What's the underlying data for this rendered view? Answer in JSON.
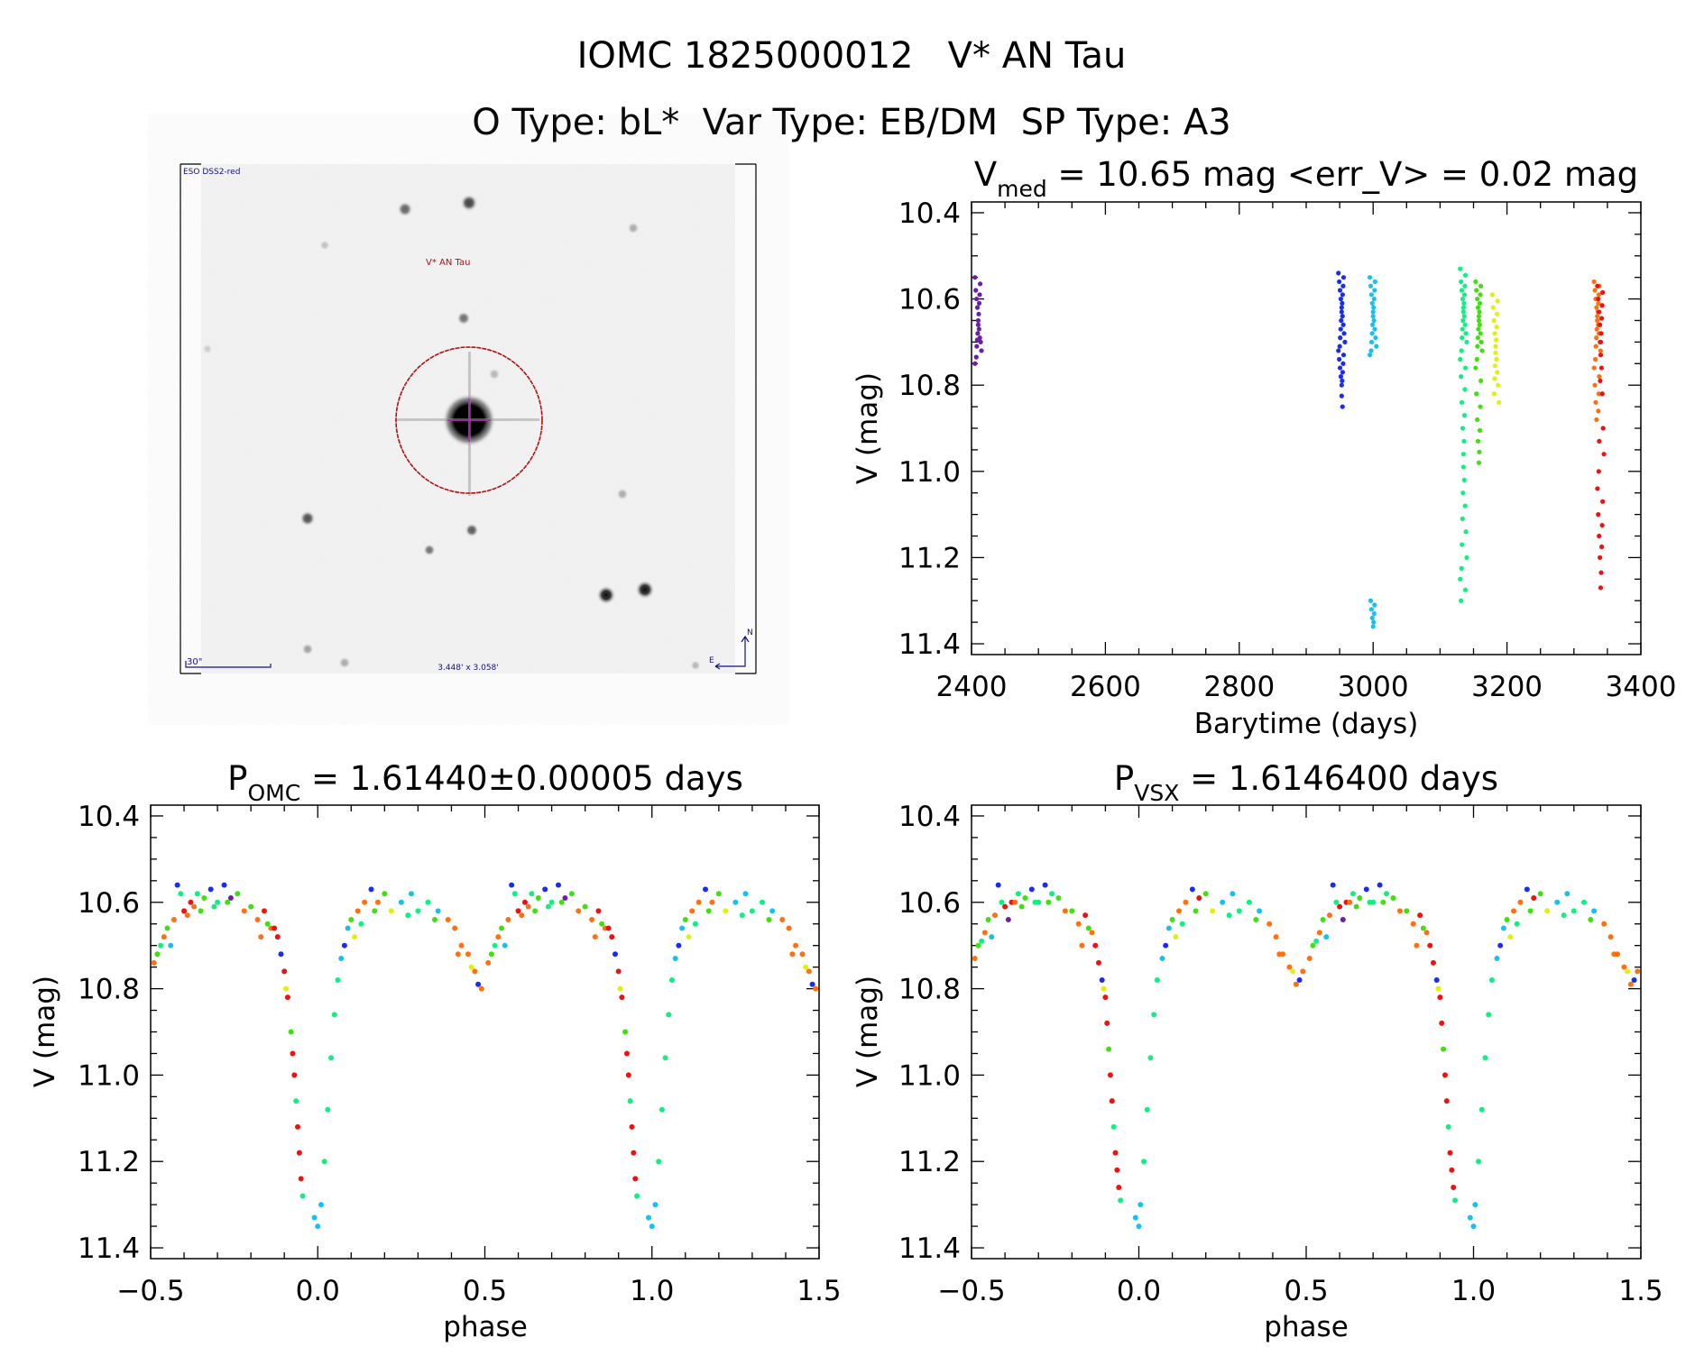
{
  "header": {
    "line1": "IOMC 1825000012   V* AN Tau",
    "line2": "O Type: bL*  Var Type: EB/DM  SP Type: A3"
  },
  "finder": {
    "survey_label": "ESO DSS2-red",
    "target_label": "V* AN Tau",
    "scale_label": "30\"",
    "fov_label": "3.448' x 3.058'",
    "north_label": "N",
    "east_label": "E",
    "circle_color": "#b01010",
    "label_color": "#10108c"
  },
  "colors": {
    "purple": "#6b1fa6",
    "blue": "#1a2cf0",
    "cyan": "#18c0f0",
    "aqua": "#10f080",
    "green": "#40e010",
    "yellow": "#e0f010",
    "orange": "#ff7010",
    "red": "#f01010"
  },
  "chart_data": [
    {
      "type": "scatter",
      "title_main": "V",
      "title_sub": "med",
      "title_rest": " = 10.65 mag <err_V> = 0.02 mag",
      "xlabel": "Barytime (days)",
      "ylabel": "V (mag)",
      "xlim": [
        2400,
        3400
      ],
      "ylim": [
        10.375,
        11.425
      ],
      "y_inverted": true,
      "xticks": [
        "2400",
        "2600",
        "2800",
        "3000",
        "3200",
        "3400"
      ],
      "yticks": [
        "10.4",
        "10.6",
        "10.8",
        "11.0",
        "11.2",
        "11.4"
      ],
      "series": [
        {
          "color": "purple",
          "x": 2410,
          "mags": [
            10.55,
            10.58,
            10.6,
            10.62,
            10.65,
            10.67,
            10.69,
            10.7,
            10.72,
            10.75
          ]
        },
        {
          "color": "blue",
          "x": 2953,
          "mags": [
            10.54,
            10.56,
            10.58,
            10.6,
            10.62,
            10.64,
            10.66,
            10.68,
            10.7,
            10.72,
            10.74,
            10.76,
            10.78,
            10.8,
            10.85
          ]
        },
        {
          "color": "cyan",
          "x": 3000,
          "mags": [
            10.55,
            10.57,
            10.59,
            10.61,
            10.63,
            10.65,
            10.67,
            10.69,
            10.71,
            10.73,
            11.3,
            11.32,
            11.34,
            11.36
          ]
        },
        {
          "color": "aqua",
          "x": 3135,
          "mags": [
            10.53,
            10.56,
            10.58,
            10.6,
            10.62,
            10.64,
            10.66,
            10.68,
            10.7,
            10.74,
            10.78,
            10.84,
            10.9,
            10.96,
            11.02,
            11.08,
            11.14,
            11.2,
            11.25,
            11.3
          ]
        },
        {
          "color": "green",
          "x": 3158,
          "mags": [
            10.56,
            10.58,
            10.6,
            10.62,
            10.64,
            10.66,
            10.68,
            10.7,
            10.72,
            10.76,
            10.82,
            10.88,
            10.93,
            10.98
          ]
        },
        {
          "color": "yellow",
          "x": 3183,
          "mags": [
            10.59,
            10.62,
            10.65,
            10.68,
            10.71,
            10.74,
            10.77,
            10.8,
            10.84
          ]
        },
        {
          "color": "orange",
          "x": 3335,
          "mags": [
            10.56,
            10.58,
            10.6,
            10.62,
            10.64,
            10.66,
            10.68,
            10.7,
            10.72,
            10.76,
            10.8,
            10.84,
            10.88
          ]
        },
        {
          "color": "red",
          "x": 3340,
          "mags": [
            10.57,
            10.6,
            10.63,
            10.66,
            10.7,
            10.76,
            10.82,
            10.9,
            10.96,
            11.04,
            11.1,
            11.15,
            11.2,
            11.27
          ]
        }
      ]
    },
    {
      "type": "scatter",
      "title_main": "P",
      "title_sub": "OMC",
      "title_rest": " = 1.61440±0.00005 days",
      "xlabel": "phase",
      "ylabel": "V (mag)",
      "xlim": [
        -0.5,
        1.5
      ],
      "ylim": [
        10.375,
        11.425
      ],
      "y_inverted": true,
      "xticks": [
        "−0.5",
        "0.0",
        "0.5",
        "1.0",
        "1.5"
      ],
      "yticks": [
        "10.4",
        "10.6",
        "10.8",
        "11.0",
        "11.2",
        "11.4"
      ],
      "points": [
        [
          -0.49,
          10.74,
          "orange"
        ],
        [
          -0.48,
          10.72,
          "green"
        ],
        [
          -0.47,
          10.7,
          "aqua"
        ],
        [
          -0.46,
          10.68,
          "orange"
        ],
        [
          -0.45,
          10.66,
          "green"
        ],
        [
          -0.44,
          10.7,
          "cyan"
        ],
        [
          -0.43,
          10.64,
          "orange"
        ],
        [
          -0.42,
          10.56,
          "blue"
        ],
        [
          -0.41,
          10.58,
          "aqua"
        ],
        [
          -0.4,
          10.62,
          "red"
        ],
        [
          -0.39,
          10.63,
          "orange"
        ],
        [
          -0.38,
          10.6,
          "red"
        ],
        [
          -0.37,
          10.61,
          "orange"
        ],
        [
          -0.36,
          10.58,
          "aqua"
        ],
        [
          -0.35,
          10.62,
          "green"
        ],
        [
          -0.34,
          10.59,
          "green"
        ],
        [
          -0.32,
          10.57,
          "blue"
        ],
        [
          -0.31,
          10.61,
          "aqua"
        ],
        [
          -0.3,
          10.6,
          "aqua"
        ],
        [
          -0.28,
          10.56,
          "blue"
        ],
        [
          -0.27,
          10.6,
          "green"
        ],
        [
          -0.26,
          10.59,
          "purple"
        ],
        [
          -0.24,
          10.58,
          "green"
        ],
        [
          -0.22,
          10.62,
          "orange"
        ],
        [
          -0.2,
          10.61,
          "green"
        ],
        [
          -0.18,
          10.64,
          "orange"
        ],
        [
          -0.17,
          10.68,
          "orange"
        ],
        [
          -0.16,
          10.62,
          "red"
        ],
        [
          -0.15,
          10.65,
          "green"
        ],
        [
          -0.14,
          10.66,
          "orange"
        ],
        [
          -0.13,
          10.66,
          "red"
        ],
        [
          -0.12,
          10.68,
          "red"
        ],
        [
          -0.11,
          10.72,
          "blue"
        ],
        [
          -0.1,
          10.76,
          "red"
        ],
        [
          -0.095,
          10.8,
          "yellow"
        ],
        [
          -0.09,
          10.82,
          "red"
        ],
        [
          -0.08,
          10.9,
          "green"
        ],
        [
          -0.075,
          10.95,
          "red"
        ],
        [
          -0.07,
          11.0,
          "red"
        ],
        [
          -0.065,
          11.06,
          "aqua"
        ],
        [
          -0.06,
          11.12,
          "red"
        ],
        [
          -0.055,
          11.18,
          "red"
        ],
        [
          -0.05,
          11.24,
          "red"
        ],
        [
          -0.045,
          11.28,
          "aqua"
        ],
        [
          -0.01,
          11.33,
          "cyan"
        ],
        [
          0.0,
          11.35,
          "cyan"
        ],
        [
          0.01,
          11.3,
          "cyan"
        ],
        [
          0.02,
          11.2,
          "aqua"
        ],
        [
          0.03,
          11.08,
          "aqua"
        ],
        [
          0.04,
          10.96,
          "aqua"
        ],
        [
          0.05,
          10.86,
          "aqua"
        ],
        [
          0.06,
          10.78,
          "aqua"
        ],
        [
          0.07,
          10.73,
          "cyan"
        ],
        [
          0.08,
          10.7,
          "blue"
        ],
        [
          0.09,
          10.66,
          "cyan"
        ],
        [
          0.1,
          10.64,
          "green"
        ],
        [
          0.11,
          10.68,
          "yellow"
        ],
        [
          0.12,
          10.62,
          "orange"
        ],
        [
          0.13,
          10.65,
          "aqua"
        ],
        [
          0.14,
          10.6,
          "orange"
        ],
        [
          0.16,
          10.57,
          "blue"
        ],
        [
          0.17,
          10.62,
          "green"
        ],
        [
          0.18,
          10.6,
          "orange"
        ],
        [
          0.2,
          10.58,
          "green"
        ],
        [
          0.22,
          10.62,
          "yellow"
        ],
        [
          0.25,
          10.6,
          "cyan"
        ],
        [
          0.27,
          10.63,
          "aqua"
        ],
        [
          0.28,
          10.58,
          "cyan"
        ],
        [
          0.3,
          10.62,
          "aqua"
        ],
        [
          0.33,
          10.6,
          "aqua"
        ],
        [
          0.35,
          10.64,
          "green"
        ],
        [
          0.36,
          10.62,
          "cyan"
        ],
        [
          0.39,
          10.64,
          "orange"
        ],
        [
          0.41,
          10.66,
          "orange"
        ],
        [
          0.42,
          10.72,
          "orange"
        ],
        [
          0.43,
          10.7,
          "orange"
        ],
        [
          0.45,
          10.72,
          "orange"
        ],
        [
          0.46,
          10.75,
          "yellow"
        ],
        [
          0.47,
          10.76,
          "orange"
        ],
        [
          0.48,
          10.79,
          "blue"
        ],
        [
          0.49,
          10.8,
          "orange"
        ]
      ]
    },
    {
      "type": "scatter",
      "title_main": "P",
      "title_sub": "VSX",
      "title_rest": " = 1.6146400 days",
      "xlabel": "phase",
      "ylabel": "V (mag)",
      "xlim": [
        -0.5,
        1.5
      ],
      "ylim": [
        10.375,
        11.425
      ],
      "y_inverted": true,
      "xticks": [
        "−0.5",
        "0.0",
        "0.5",
        "1.0",
        "1.5"
      ],
      "yticks": [
        "10.4",
        "10.6",
        "10.8",
        "11.0",
        "11.2",
        "11.4"
      ],
      "points": [
        [
          -0.49,
          10.73,
          "orange"
        ],
        [
          -0.48,
          10.7,
          "green"
        ],
        [
          -0.47,
          10.69,
          "aqua"
        ],
        [
          -0.46,
          10.67,
          "orange"
        ],
        [
          -0.45,
          10.64,
          "green"
        ],
        [
          -0.44,
          10.68,
          "cyan"
        ],
        [
          -0.43,
          10.63,
          "orange"
        ],
        [
          -0.42,
          10.56,
          "blue"
        ],
        [
          -0.41,
          10.6,
          "aqua"
        ],
        [
          -0.4,
          10.61,
          "red"
        ],
        [
          -0.39,
          10.64,
          "purple"
        ],
        [
          -0.38,
          10.6,
          "red"
        ],
        [
          -0.37,
          10.6,
          "orange"
        ],
        [
          -0.36,
          10.58,
          "aqua"
        ],
        [
          -0.35,
          10.61,
          "green"
        ],
        [
          -0.34,
          10.59,
          "green"
        ],
        [
          -0.32,
          10.57,
          "blue"
        ],
        [
          -0.31,
          10.6,
          "aqua"
        ],
        [
          -0.3,
          10.6,
          "aqua"
        ],
        [
          -0.28,
          10.56,
          "blue"
        ],
        [
          -0.27,
          10.6,
          "green"
        ],
        [
          -0.26,
          10.58,
          "aqua"
        ],
        [
          -0.24,
          10.59,
          "green"
        ],
        [
          -0.22,
          10.62,
          "orange"
        ],
        [
          -0.2,
          10.62,
          "green"
        ],
        [
          -0.18,
          10.65,
          "orange"
        ],
        [
          -0.17,
          10.7,
          "orange"
        ],
        [
          -0.16,
          10.63,
          "red"
        ],
        [
          -0.15,
          10.66,
          "green"
        ],
        [
          -0.14,
          10.67,
          "orange"
        ],
        [
          -0.13,
          10.7,
          "red"
        ],
        [
          -0.12,
          10.74,
          "red"
        ],
        [
          -0.11,
          10.78,
          "blue"
        ],
        [
          -0.105,
          10.8,
          "yellow"
        ],
        [
          -0.1,
          10.82,
          "red"
        ],
        [
          -0.095,
          10.88,
          "red"
        ],
        [
          -0.09,
          10.94,
          "green"
        ],
        [
          -0.085,
          11.0,
          "red"
        ],
        [
          -0.08,
          11.06,
          "red"
        ],
        [
          -0.075,
          11.12,
          "aqua"
        ],
        [
          -0.07,
          11.18,
          "red"
        ],
        [
          -0.065,
          11.22,
          "red"
        ],
        [
          -0.06,
          11.26,
          "red"
        ],
        [
          -0.055,
          11.29,
          "aqua"
        ],
        [
          -0.01,
          11.33,
          "cyan"
        ],
        [
          0.0,
          11.35,
          "cyan"
        ],
        [
          0.005,
          11.3,
          "cyan"
        ],
        [
          0.015,
          11.2,
          "aqua"
        ],
        [
          0.025,
          11.08,
          "aqua"
        ],
        [
          0.035,
          10.96,
          "aqua"
        ],
        [
          0.045,
          10.86,
          "aqua"
        ],
        [
          0.055,
          10.78,
          "aqua"
        ],
        [
          0.07,
          10.73,
          "cyan"
        ],
        [
          0.08,
          10.7,
          "blue"
        ],
        [
          0.09,
          10.66,
          "cyan"
        ],
        [
          0.1,
          10.64,
          "green"
        ],
        [
          0.11,
          10.68,
          "yellow"
        ],
        [
          0.12,
          10.62,
          "orange"
        ],
        [
          0.13,
          10.65,
          "aqua"
        ],
        [
          0.14,
          10.6,
          "orange"
        ],
        [
          0.16,
          10.57,
          "blue"
        ],
        [
          0.17,
          10.62,
          "green"
        ],
        [
          0.18,
          10.59,
          "red"
        ],
        [
          0.2,
          10.58,
          "green"
        ],
        [
          0.22,
          10.62,
          "yellow"
        ],
        [
          0.25,
          10.6,
          "cyan"
        ],
        [
          0.27,
          10.63,
          "aqua"
        ],
        [
          0.28,
          10.58,
          "cyan"
        ],
        [
          0.3,
          10.62,
          "aqua"
        ],
        [
          0.33,
          10.6,
          "aqua"
        ],
        [
          0.35,
          10.64,
          "green"
        ],
        [
          0.36,
          10.62,
          "cyan"
        ],
        [
          0.39,
          10.65,
          "orange"
        ],
        [
          0.41,
          10.68,
          "orange"
        ],
        [
          0.42,
          10.72,
          "orange"
        ],
        [
          0.43,
          10.72,
          "orange"
        ],
        [
          0.45,
          10.75,
          "orange"
        ],
        [
          0.46,
          10.76,
          "yellow"
        ],
        [
          0.47,
          10.79,
          "orange"
        ],
        [
          0.48,
          10.78,
          "blue"
        ],
        [
          0.49,
          10.76,
          "orange"
        ]
      ]
    }
  ]
}
